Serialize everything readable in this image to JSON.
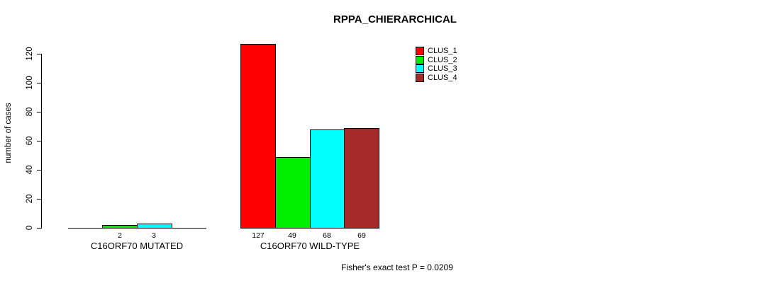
{
  "chart_data": {
    "type": "bar",
    "title": "RPPA_CHIERARCHICAL",
    "ylabel": "number of cases",
    "xlabel": "",
    "ylim": [
      0,
      120
    ],
    "yticks": [
      0,
      20,
      40,
      60,
      80,
      100,
      120
    ],
    "grid": false,
    "legend_position": "top-right",
    "legend": [
      {
        "label": "CLUS_1",
        "color": "#FF0000"
      },
      {
        "label": "CLUS_2",
        "color": "#00EE00"
      },
      {
        "label": "CLUS_3",
        "color": "#00FFFF"
      },
      {
        "label": "CLUS_4",
        "color": "#A52A2A"
      }
    ],
    "groups": [
      {
        "label": "C16ORF70 MUTATED",
        "values": [
          0,
          2,
          3,
          0
        ],
        "bar_labels": [
          "",
          "2",
          "3",
          ""
        ]
      },
      {
        "label": "C16ORF70 WILD-TYPE",
        "values": [
          127,
          49,
          68,
          69
        ],
        "bar_labels": [
          "127",
          "49",
          "68",
          "69"
        ]
      }
    ],
    "annotation": "Fisher's exact test P = 0.0209"
  }
}
